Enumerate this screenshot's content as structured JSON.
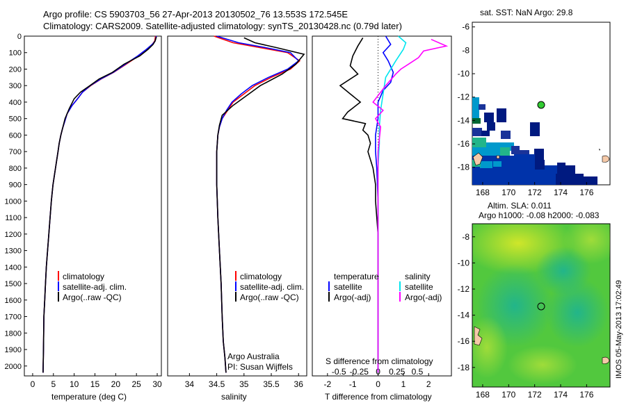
{
  "header": {
    "line1": "Argo profile: CS 5903703_56 27-Apr-2013 20130502_76 13.553S 172.545E",
    "line2": "Climatology: CARS2009. Satellite-adjusted climatology: synTS_20130428.nc (0.79d later)"
  },
  "colors": {
    "climatology": "#ff0000",
    "satellite": "#0000ff",
    "argo": "#000000",
    "sal_satellite": "#00e5ee",
    "sal_argo": "#ff00ff"
  },
  "panel_temp": {
    "xlabel": "temperature (deg C)",
    "legend": [
      "climatology",
      "satellite-adj. clim.",
      "Argo(..raw -QC)"
    ]
  },
  "panel_sal": {
    "xlabel": "salinity",
    "legend": [
      "climatology",
      "satellite-adj. clim.",
      "Argo(..raw -QC)"
    ],
    "credit1": "Argo Australia",
    "credit2": "PI: Susan Wijffels"
  },
  "panel_diff": {
    "xlabel": "T difference from climatology",
    "toplabel": "S difference from climatology",
    "legend_temp_title": "temperature",
    "legend_sal_title": "salinity",
    "legend_temp": [
      "satellite",
      "Argo(-adj)"
    ],
    "legend_sal": [
      "satellite",
      "Argo(-adj)"
    ]
  },
  "map_sst": {
    "title": "sat. SST: NaN Argo: 29.8"
  },
  "map_sla": {
    "title1": "Altim. SLA: 0.011",
    "title2": "Argo h1000: -0.08 h2000: -0.083"
  },
  "side_label": "IMOS 05-May-2013 17:02:49",
  "chart_data": [
    {
      "type": "line",
      "xlabel": "temperature (deg C)",
      "ylabel": "",
      "xlim": [
        -2,
        31
      ],
      "ylim": [
        2060,
        0
      ],
      "xticks": [
        0,
        5,
        10,
        15,
        20,
        25,
        30
      ],
      "yticks": [
        0,
        100,
        200,
        300,
        400,
        500,
        600,
        700,
        800,
        900,
        1000,
        1100,
        1200,
        1300,
        1400,
        1500,
        1600,
        1700,
        1800,
        1900,
        2000
      ],
      "series": [
        {
          "name": "climatology",
          "x": [
            29.6,
            29.4,
            28.8,
            27.5,
            25.5,
            22.5,
            19.5,
            16.5,
            14,
            12,
            10.8,
            9.5,
            8.3,
            7.7,
            7.2,
            6.8,
            6.4,
            6.1,
            5.8,
            5.5,
            5.2,
            4.9,
            4.5,
            4.2,
            3.9,
            3.6,
            3.3,
            3.1,
            2.9,
            2.7,
            2.6,
            2.5
          ],
          "y": [
            0,
            30,
            50,
            80,
            120,
            170,
            220,
            260,
            300,
            340,
            380,
            420,
            470,
            520,
            560,
            600,
            650,
            700,
            750,
            800,
            850,
            900,
            1000,
            1100,
            1200,
            1300,
            1400,
            1500,
            1600,
            1700,
            1900,
            2040
          ]
        },
        {
          "name": "satellite-adj. clim.",
          "x": [
            29.8,
            29.5,
            28.8,
            27.4,
            25.3,
            22.3,
            19.4,
            16.4,
            13.9,
            12,
            10.8,
            9.5,
            8.3,
            7.7,
            7.2,
            6.8,
            6.4,
            6.1,
            5.8,
            5.5,
            5.2,
            4.9,
            4.5,
            4.2,
            3.9,
            3.6,
            3.3,
            3.1,
            2.9,
            2.7,
            2.6,
            2.5
          ],
          "y": [
            0,
            30,
            50,
            80,
            120,
            170,
            220,
            260,
            300,
            340,
            380,
            420,
            470,
            520,
            560,
            600,
            650,
            700,
            750,
            800,
            850,
            900,
            1000,
            1100,
            1200,
            1300,
            1400,
            1500,
            1600,
            1700,
            1900,
            2040
          ]
        },
        {
          "name": "Argo(..raw -QC)",
          "x": [
            29.8,
            29.5,
            29.0,
            27.8,
            25.8,
            22.0,
            19.2,
            16.0,
            13.8,
            11.5,
            10.0,
            8.8,
            7.8,
            7.2,
            6.8,
            6.4,
            6.1,
            5.8,
            5.5,
            5.2,
            4.9,
            4.5,
            4.2,
            3.9,
            3.6,
            3.3,
            3.1,
            2.9,
            2.7,
            2.6,
            2.5
          ],
          "y": [
            5,
            30,
            50,
            80,
            120,
            170,
            220,
            260,
            300,
            340,
            380,
            440,
            500,
            560,
            600,
            650,
            700,
            750,
            800,
            850,
            900,
            1000,
            1100,
            1200,
            1300,
            1400,
            1500,
            1600,
            1700,
            1900,
            2040
          ]
        }
      ]
    },
    {
      "type": "line",
      "xlabel": "salinity",
      "xlim": [
        33.6,
        36.15
      ],
      "ylim": [
        2060,
        0
      ],
      "xticks": [
        34,
        34.5,
        35,
        35.5,
        36
      ],
      "series": [
        {
          "name": "climatology",
          "x": [
            34.45,
            34.8,
            35.3,
            35.8,
            36.02,
            35.85,
            35.5,
            35.2,
            35.0,
            34.8,
            34.7,
            34.6,
            34.55,
            34.52,
            34.5,
            34.5,
            34.5,
            34.52,
            34.55,
            34.58,
            34.6,
            34.62,
            34.65,
            34.67
          ],
          "y": [
            0,
            40,
            70,
            100,
            150,
            200,
            250,
            300,
            350,
            400,
            450,
            500,
            550,
            600,
            700,
            800,
            900,
            1100,
            1300,
            1500,
            1700,
            1850,
            1950,
            2040
          ]
        },
        {
          "name": "satellite-adj. clim.",
          "x": [
            34.5,
            34.9,
            35.4,
            35.85,
            36.0,
            35.8,
            35.45,
            35.15,
            34.95,
            34.78,
            34.68,
            34.6,
            34.55,
            34.52,
            34.5,
            34.5,
            34.5,
            34.52,
            34.55,
            34.58,
            34.6,
            34.62,
            34.65,
            34.67
          ],
          "y": [
            0,
            40,
            70,
            100,
            150,
            200,
            250,
            300,
            350,
            400,
            450,
            500,
            550,
            600,
            700,
            800,
            900,
            1100,
            1300,
            1500,
            1700,
            1850,
            1950,
            2040
          ]
        },
        {
          "name": "Argo(..raw -QC)",
          "x": [
            35.0,
            35.2,
            35.6,
            36.1,
            35.95,
            35.7,
            35.3,
            35.05,
            34.8,
            34.6,
            34.55,
            34.52,
            34.5,
            34.5,
            34.5,
            34.52,
            34.55,
            34.58,
            34.6,
            34.62,
            34.65,
            34.67
          ],
          "y": [
            10,
            40,
            70,
            110,
            170,
            230,
            300,
            360,
            420,
            480,
            540,
            600,
            700,
            800,
            900,
            1100,
            1300,
            1500,
            1700,
            1850,
            1950,
            2040
          ]
        }
      ]
    },
    {
      "type": "line",
      "xlabel": "T difference from climatology",
      "xlim": [
        -2.6,
        2.9
      ],
      "ylim": [
        2060,
        0
      ],
      "xticks": [
        -2,
        -1,
        0,
        1,
        2
      ],
      "top_xlabel": "S difference from climatology",
      "top_xticks": [
        "-0.5",
        "-0.25",
        "0",
        "0.25",
        "0.5"
      ],
      "series": [
        {
          "name": "temperature satellite",
          "x": [
            0.3,
            0.5,
            0.2,
            0.4,
            0.6,
            0.5,
            0.2,
            0.0,
            0.0,
            -0.1,
            -0.1,
            -0.05,
            0.0,
            0.0,
            0.0,
            0.0,
            0.0,
            0.0,
            0.0
          ],
          "y": [
            0,
            50,
            100,
            150,
            220,
            280,
            330,
            400,
            500,
            600,
            700,
            800,
            1000,
            1200,
            1400,
            1600,
            1800,
            1950,
            2040
          ]
        },
        {
          "name": "temperature Argo(-adj)",
          "x": [
            -0.6,
            -0.8,
            -1.0,
            -1.1,
            -0.8,
            -1.5,
            -1.1,
            -0.7,
            -1.2,
            -1.4,
            -0.5,
            -0.6,
            -0.4,
            -0.3,
            -0.4,
            -0.2,
            -0.1,
            -0.1,
            0.0,
            0.0,
            0.0
          ],
          "y": [
            10,
            60,
            120,
            180,
            230,
            300,
            350,
            400,
            460,
            500,
            530,
            570,
            600,
            650,
            700,
            800,
            900,
            1000,
            1200,
            1500,
            2040
          ]
        },
        {
          "name": "salinity satellite",
          "x": [
            0.8,
            1.1,
            1.0,
            0.7,
            0.3,
            0.2,
            0.1,
            0.05,
            0.05,
            0.0,
            0.0,
            0.0,
            0.0,
            0.0,
            0.0,
            0.0,
            0.0
          ],
          "y": [
            0,
            40,
            80,
            150,
            250,
            350,
            450,
            550,
            650,
            800,
            1000,
            1200,
            1400,
            1600,
            1800,
            1950,
            2040
          ]
        },
        {
          "name": "salinity Argo(-adj)",
          "x": [
            2.1,
            2.7,
            1.8,
            1.6,
            1.2,
            0.9,
            0.7,
            0.3,
            -0.2,
            0.2,
            -0.1,
            0.1,
            0.0,
            0.0,
            0.0,
            0.0
          ],
          "y": [
            20,
            60,
            90,
            130,
            170,
            200,
            230,
            300,
            400,
            450,
            500,
            550,
            700,
            1000,
            1500,
            2040
          ]
        }
      ]
    }
  ]
}
